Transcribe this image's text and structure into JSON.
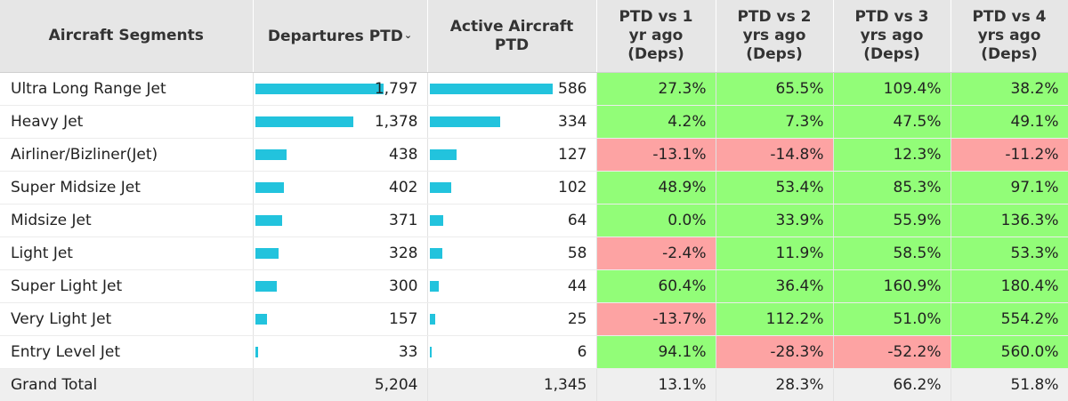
{
  "header": {
    "segment": "Aircraft Segments",
    "departures": "Departures PTD",
    "active": [
      "Active Aircraft",
      "PTD"
    ],
    "ptd1": [
      "PTD vs 1",
      "yr ago",
      "(Deps)"
    ],
    "ptd2": [
      "PTD vs 2",
      "yrs ago",
      "(Deps)"
    ],
    "ptd3": [
      "PTD vs 3",
      "yrs ago",
      "(Deps)"
    ],
    "ptd4": [
      "PTD vs 4",
      "yrs ago",
      "(Deps)"
    ],
    "sort_icon": "chevron-down-icon"
  },
  "colors": {
    "bar": "#22c3dd",
    "positive": "#92fd78",
    "negative": "#fda3a3"
  },
  "chart_data": {
    "type": "table",
    "columns": [
      "Aircraft Segments",
      "Departures PTD",
      "Active Aircraft PTD",
      "PTD vs 1 yr ago (Deps)",
      "PTD vs 2 yrs ago (Deps)",
      "PTD vs 3 yrs ago (Deps)",
      "PTD vs 4 yrs ago (Deps)"
    ],
    "rows": [
      {
        "segment": "Ultra Long Range Jet",
        "departures": 1797,
        "departures_label": "1,797",
        "active": 586,
        "active_label": "586",
        "ptd1": "27.3%",
        "ptd2": "65.5%",
        "ptd3": "109.4%",
        "ptd4": "38.2%"
      },
      {
        "segment": "Heavy Jet",
        "departures": 1378,
        "departures_label": "1,378",
        "active": 334,
        "active_label": "334",
        "ptd1": "4.2%",
        "ptd2": "7.3%",
        "ptd3": "47.5%",
        "ptd4": "49.1%"
      },
      {
        "segment": "Airliner/Bizliner(Jet)",
        "departures": 438,
        "departures_label": "438",
        "active": 127,
        "active_label": "127",
        "ptd1": "-13.1%",
        "ptd2": "-14.8%",
        "ptd3": "12.3%",
        "ptd4": "-11.2%"
      },
      {
        "segment": "Super Midsize Jet",
        "departures": 402,
        "departures_label": "402",
        "active": 102,
        "active_label": "102",
        "ptd1": "48.9%",
        "ptd2": "53.4%",
        "ptd3": "85.3%",
        "ptd4": "97.1%"
      },
      {
        "segment": "Midsize Jet",
        "departures": 371,
        "departures_label": "371",
        "active": 64,
        "active_label": "64",
        "ptd1": "0.0%",
        "ptd2": "33.9%",
        "ptd3": "55.9%",
        "ptd4": "136.3%"
      },
      {
        "segment": "Light Jet",
        "departures": 328,
        "departures_label": "328",
        "active": 58,
        "active_label": "58",
        "ptd1": "-2.4%",
        "ptd2": "11.9%",
        "ptd3": "58.5%",
        "ptd4": "53.3%"
      },
      {
        "segment": "Super Light Jet",
        "departures": 300,
        "departures_label": "300",
        "active": 44,
        "active_label": "44",
        "ptd1": "60.4%",
        "ptd2": "36.4%",
        "ptd3": "160.9%",
        "ptd4": "180.4%"
      },
      {
        "segment": "Very Light Jet",
        "departures": 157,
        "departures_label": "157",
        "active": 25,
        "active_label": "25",
        "ptd1": "-13.7%",
        "ptd2": "112.2%",
        "ptd3": "51.0%",
        "ptd4": "554.2%"
      },
      {
        "segment": "Entry Level Jet",
        "departures": 33,
        "departures_label": "33",
        "active": 6,
        "active_label": "6",
        "ptd1": "94.1%",
        "ptd2": "-28.3%",
        "ptd3": "-52.2%",
        "ptd4": "560.0%"
      }
    ],
    "total": {
      "segment": "Grand Total",
      "departures": "5,204",
      "active": "1,345",
      "ptd1": "13.1%",
      "ptd2": "28.3%",
      "ptd3": "66.2%",
      "ptd4": "51.8%"
    }
  }
}
